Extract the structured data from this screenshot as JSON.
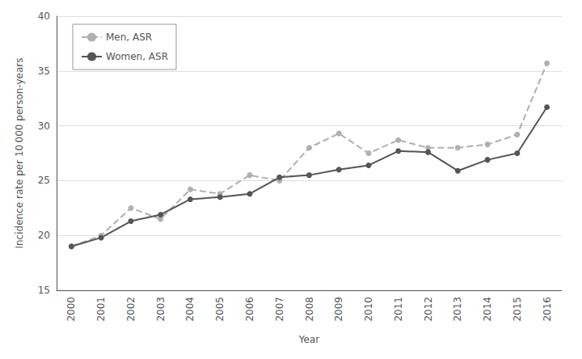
{
  "chart_data": {
    "type": "line",
    "categories": [
      "2000",
      "2001",
      "2002",
      "2003",
      "2004",
      "2005",
      "2006",
      "2007",
      "2008",
      "2009",
      "2010",
      "2011",
      "2012",
      "2013",
      "2014",
      "2015",
      "2016"
    ],
    "series": [
      {
        "name": "Men, ASR",
        "color": "#b0b0b0",
        "line_style": "dashed",
        "marker": "circle",
        "values": [
          19.0,
          20.0,
          22.5,
          21.5,
          24.2,
          23.8,
          25.5,
          25.0,
          28.0,
          29.3,
          27.5,
          28.7,
          28.0,
          28.0,
          28.3,
          29.2,
          35.7
        ]
      },
      {
        "name": "Women, ASR",
        "color": "#555555",
        "line_style": "solid",
        "marker": "circle",
        "values": [
          19.0,
          19.8,
          21.3,
          21.9,
          23.3,
          23.5,
          23.8,
          25.3,
          25.5,
          26.0,
          26.4,
          27.7,
          27.6,
          25.9,
          26.9,
          27.5,
          31.7
        ]
      }
    ],
    "x_label": "Year",
    "y_label": "Incidence rate per 10 000 person-years",
    "ylim": [
      15,
      40
    ],
    "yticks": [
      15,
      20,
      25,
      30,
      35,
      40
    ],
    "grid": true,
    "legend": "upper left"
  }
}
